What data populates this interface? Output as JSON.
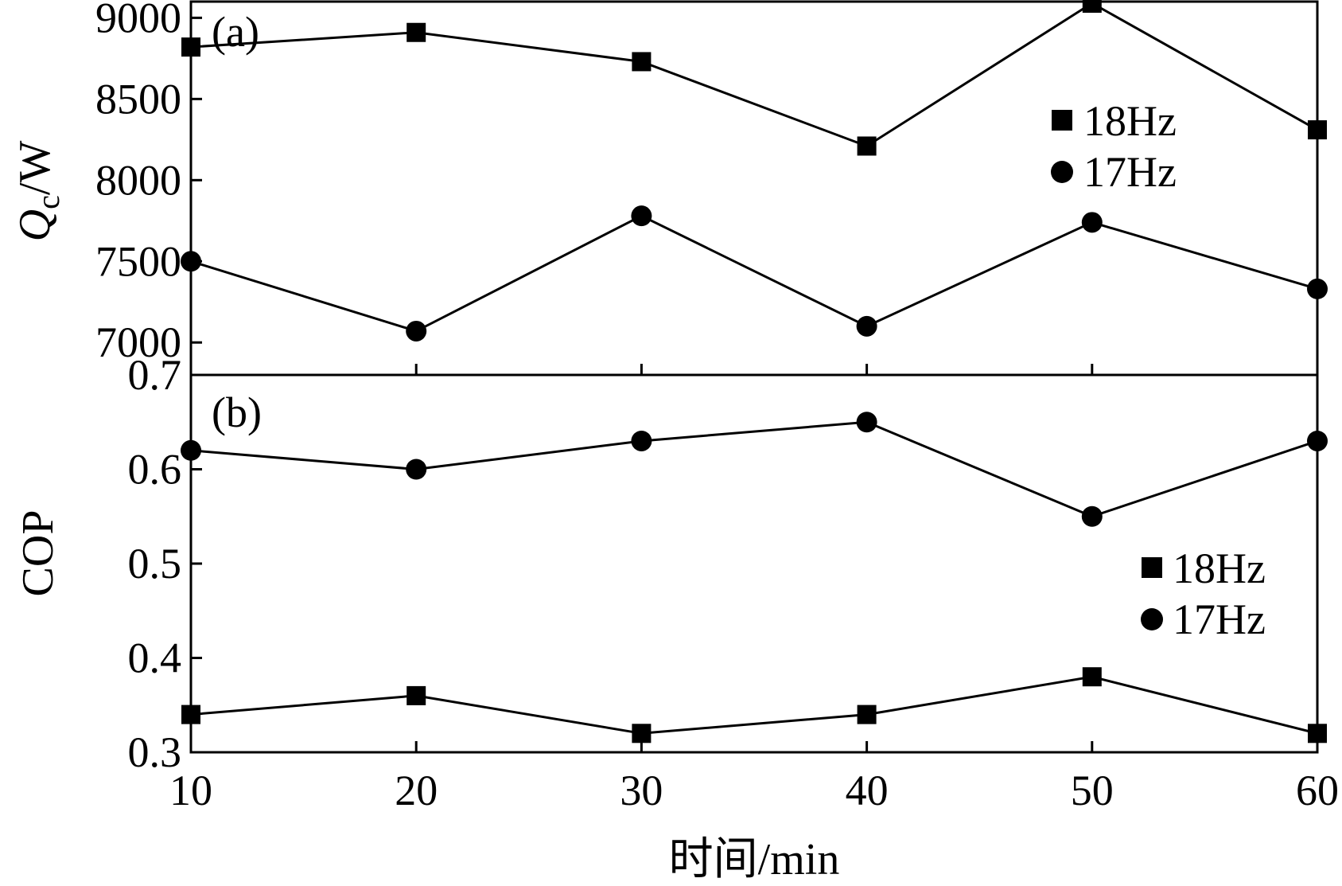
{
  "chart_data": [
    {
      "type": "line",
      "panel_label": "(a)",
      "ylabel": {
        "main": "Q",
        "sub": "c",
        "unit": "/W"
      },
      "x": [
        10,
        20,
        30,
        40,
        50,
        60
      ],
      "xlim": [
        10,
        60
      ],
      "ylim": [
        6800,
        9100
      ],
      "yticks": [
        7000,
        7500,
        8000,
        8500,
        9000
      ],
      "grid": false,
      "legend_position": "upper-right",
      "series": [
        {
          "name": "18Hz",
          "marker": "square",
          "values": [
            8820,
            8910,
            8730,
            8210,
            9090,
            8310
          ]
        },
        {
          "name": "17Hz",
          "marker": "circle",
          "values": [
            7500,
            7070,
            7780,
            7100,
            7740,
            7330
          ]
        }
      ]
    },
    {
      "type": "line",
      "panel_label": "(b)",
      "ylabel": "COP",
      "xlabel": "时间/min",
      "x": [
        10,
        20,
        30,
        40,
        50,
        60
      ],
      "xticks": [
        "10",
        "20",
        "30",
        "40",
        "50",
        "60"
      ],
      "xlim": [
        10,
        60
      ],
      "ylim": [
        0.3,
        0.7
      ],
      "yticks": [
        "0.3",
        "0.4",
        "0.5",
        "0.6",
        "0.7"
      ],
      "grid": false,
      "legend_position": "right",
      "series": [
        {
          "name": "18Hz",
          "marker": "square",
          "values": [
            0.34,
            0.36,
            0.32,
            0.34,
            0.38,
            0.32
          ]
        },
        {
          "name": "17Hz",
          "marker": "circle",
          "values": [
            0.62,
            0.6,
            0.63,
            0.65,
            0.55,
            0.63
          ]
        }
      ]
    }
  ]
}
